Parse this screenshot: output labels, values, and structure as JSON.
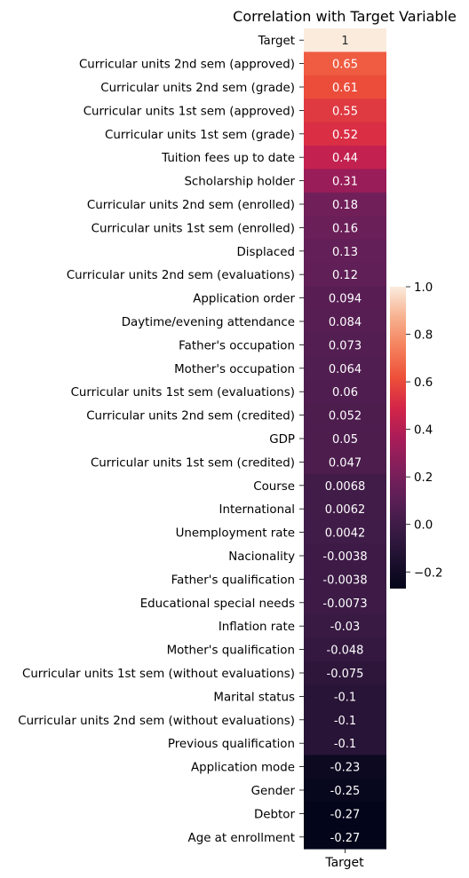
{
  "chart_data": {
    "type": "heatmap",
    "title": "Correlation with Target Variable",
    "xlabel": "",
    "ylabel": "",
    "column": "Target",
    "rows": [
      {
        "label": "Target",
        "value": 1,
        "text": "1"
      },
      {
        "label": "Curricular units 2nd sem (approved)",
        "value": 0.65,
        "text": "0.65"
      },
      {
        "label": "Curricular units 2nd sem (grade)",
        "value": 0.61,
        "text": "0.61"
      },
      {
        "label": "Curricular units 1st sem (approved)",
        "value": 0.55,
        "text": "0.55"
      },
      {
        "label": "Curricular units 1st sem (grade)",
        "value": 0.52,
        "text": "0.52"
      },
      {
        "label": "Tuition fees up to date",
        "value": 0.44,
        "text": "0.44"
      },
      {
        "label": "Scholarship holder",
        "value": 0.31,
        "text": "0.31"
      },
      {
        "label": "Curricular units 2nd sem (enrolled)",
        "value": 0.18,
        "text": "0.18"
      },
      {
        "label": "Curricular units 1st sem (enrolled)",
        "value": 0.16,
        "text": "0.16"
      },
      {
        "label": "Displaced",
        "value": 0.13,
        "text": "0.13"
      },
      {
        "label": "Curricular units 2nd sem (evaluations)",
        "value": 0.12,
        "text": "0.12"
      },
      {
        "label": "Application order",
        "value": 0.094,
        "text": "0.094"
      },
      {
        "label": "Daytime/evening attendance",
        "value": 0.084,
        "text": "0.084"
      },
      {
        "label": "Father's occupation",
        "value": 0.073,
        "text": "0.073"
      },
      {
        "label": "Mother's occupation",
        "value": 0.064,
        "text": "0.064"
      },
      {
        "label": "Curricular units 1st sem (evaluations)",
        "value": 0.06,
        "text": "0.06"
      },
      {
        "label": "Curricular units 2nd sem (credited)",
        "value": 0.052,
        "text": "0.052"
      },
      {
        "label": "GDP",
        "value": 0.05,
        "text": "0.05"
      },
      {
        "label": "Curricular units 1st sem (credited)",
        "value": 0.047,
        "text": "0.047"
      },
      {
        "label": "Course",
        "value": 0.0068,
        "text": "0.0068"
      },
      {
        "label": "International",
        "value": 0.0062,
        "text": "0.0062"
      },
      {
        "label": "Unemployment rate",
        "value": 0.0042,
        "text": "0.0042"
      },
      {
        "label": "Nacionality",
        "value": -0.0038,
        "text": "-0.0038"
      },
      {
        "label": "Father's qualification",
        "value": -0.0038,
        "text": "-0.0038"
      },
      {
        "label": "Educational special needs",
        "value": -0.0073,
        "text": "-0.0073"
      },
      {
        "label": "Inflation rate",
        "value": -0.03,
        "text": "-0.03"
      },
      {
        "label": "Mother's qualification",
        "value": -0.048,
        "text": "-0.048"
      },
      {
        "label": "Curricular units 1st sem (without evaluations)",
        "value": -0.075,
        "text": "-0.075"
      },
      {
        "label": "Marital status",
        "value": -0.1,
        "text": "-0.1"
      },
      {
        "label": "Curricular units 2nd sem (without evaluations)",
        "value": -0.1,
        "text": "-0.1"
      },
      {
        "label": "Previous qualification",
        "value": -0.1,
        "text": "-0.1"
      },
      {
        "label": "Application mode",
        "value": -0.23,
        "text": "-0.23"
      },
      {
        "label": "Gender",
        "value": -0.25,
        "text": "-0.25"
      },
      {
        "label": "Debtor",
        "value": -0.27,
        "text": "-0.27"
      },
      {
        "label": "Age at enrollment",
        "value": -0.27,
        "text": "-0.27"
      }
    ],
    "colorbar": {
      "min": -0.27,
      "max": 1.0,
      "ticks": [
        {
          "value": 1.0,
          "label": "1.0"
        },
        {
          "value": 0.8,
          "label": "0.8"
        },
        {
          "value": 0.6,
          "label": "0.6"
        },
        {
          "value": 0.4,
          "label": "0.4"
        },
        {
          "value": 0.2,
          "label": "0.2"
        },
        {
          "value": 0.0,
          "label": "0.0"
        },
        {
          "value": -0.2,
          "label": "−0.2"
        }
      ]
    },
    "colormap": "rocket",
    "annotation_colors": {
      "dark": "#262626",
      "light": "#ffffff"
    }
  }
}
